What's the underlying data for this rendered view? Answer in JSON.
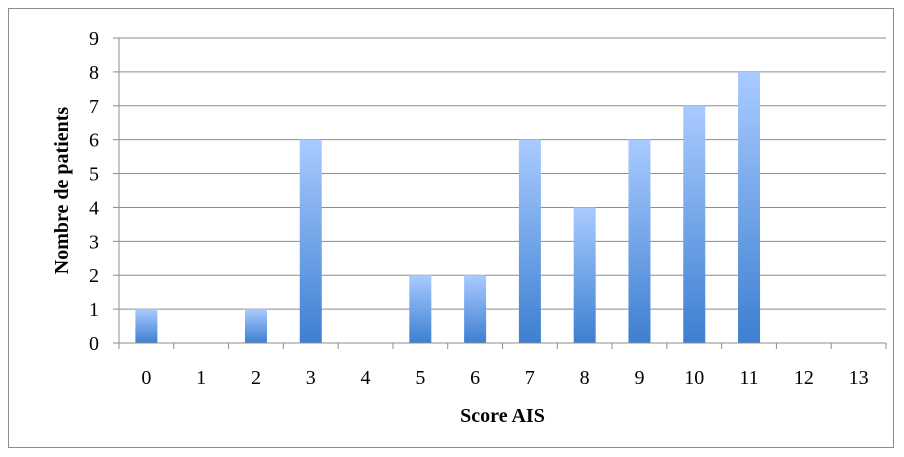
{
  "chart_data": {
    "type": "bar",
    "title": "",
    "xlabel": "Score AIS",
    "ylabel": "Nombre de patients",
    "categories": [
      "0",
      "1",
      "2",
      "3",
      "4",
      "5",
      "6",
      "7",
      "8",
      "9",
      "10",
      "11",
      "12",
      "13"
    ],
    "values": [
      1,
      0,
      1,
      6,
      0,
      2,
      2,
      6,
      4,
      6,
      7,
      8,
      0,
      0
    ],
    "ylim": [
      0,
      9
    ],
    "yticks": [
      "0",
      "1",
      "2",
      "3",
      "4",
      "5",
      "6",
      "7",
      "8",
      "9"
    ],
    "grid": true,
    "legend": "none",
    "bar_color_top": "#a9cbff",
    "bar_color_bottom": "#3d7fd1"
  }
}
